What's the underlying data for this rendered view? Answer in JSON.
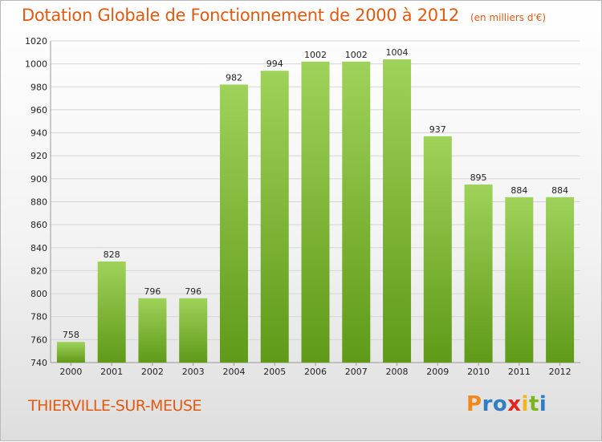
{
  "title": "Dotation Globale de Fonctionnement de 2000 à 2012",
  "unit": "(en milliers d'€)",
  "commune": "THIERVILLE-SUR-MEUSE",
  "logo": {
    "letters": [
      "P",
      "r",
      "o",
      "x",
      "i",
      "t",
      "i"
    ],
    "colors": [
      "#f08a1c",
      "#2f7dc4",
      "#2f7dc4",
      "#e0261f",
      "#f0b41c",
      "#7ab51d",
      "#2f7dc4"
    ]
  },
  "colors": {
    "title": "#e05a10",
    "bar_top": "#9fd25a",
    "bar_bottom": "#5f9a18"
  },
  "chart_data": {
    "type": "bar",
    "categories": [
      "2000",
      "2001",
      "2002",
      "2003",
      "2004",
      "2005",
      "2006",
      "2007",
      "2008",
      "2009",
      "2010",
      "2011",
      "2012"
    ],
    "values": [
      758,
      828,
      796,
      796,
      982,
      994,
      1002,
      1002,
      1004,
      937,
      895,
      884,
      884
    ],
    "ylim": [
      740,
      1020
    ],
    "yticks": [
      740,
      760,
      780,
      800,
      820,
      840,
      860,
      880,
      900,
      920,
      940,
      960,
      980,
      1000,
      1020
    ],
    "grid": true,
    "title": "Dotation Globale de Fonctionnement de 2000 à 2012",
    "xlabel": "",
    "ylabel": ""
  }
}
